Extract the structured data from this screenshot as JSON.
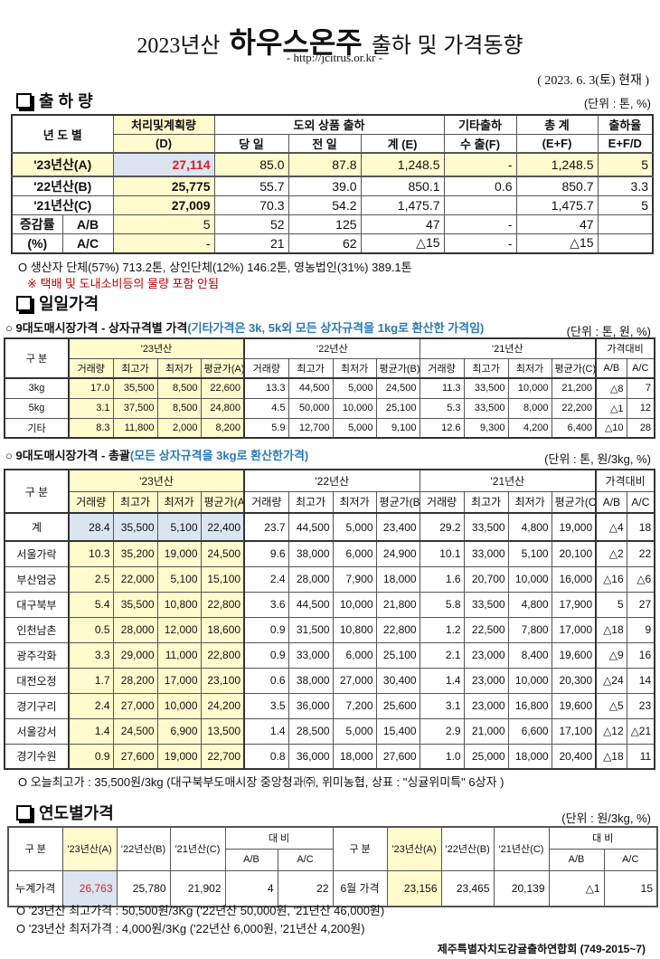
{
  "header": {
    "title_prefix": "2023년산",
    "title_main": "하우스온주",
    "title_suffix": "출하 및 가격동향",
    "url": "- http://jcitrus.or.kr -",
    "date": "( 2023. 6. 3(토) 현재 )"
  },
  "shipment": {
    "section_title": "출 하 량",
    "unit": "(단위 : 톤, %)",
    "headers": {
      "year": "년 도 별",
      "plan": "처리및계획량",
      "plan_code": "(D)",
      "outside": "도외 상품 출하",
      "etc": "기타출하",
      "total": "총  계",
      "rate": "출하율",
      "today": "당 일",
      "prev": "전 일",
      "sum": "계 (E)",
      "export": "수 출(F)",
      "ef": "(E+F)",
      "efd": "E+F/D"
    },
    "rows": [
      {
        "label": "'23년산(A)",
        "values": [
          "27,114",
          "85.0",
          "87.8",
          "1,248.5",
          "-",
          "1,248.5",
          "5"
        ]
      },
      {
        "label": "'22년산(B)",
        "values": [
          "25,775",
          "55.7",
          "39.0",
          "850.1",
          "0.6",
          "850.7",
          "3.3"
        ]
      },
      {
        "label": "'21년산(C)",
        "values": [
          "27,009",
          "70.3",
          "54.2",
          "1,475.7",
          "",
          "1,475.7",
          "5"
        ]
      }
    ],
    "change_label_1": "증감률",
    "change_label_2": "(%)",
    "change_rows": [
      {
        "label": "A/B",
        "values": [
          "5",
          "52",
          "125",
          "47",
          "-",
          "47",
          ""
        ]
      },
      {
        "label": "A/C",
        "values": [
          "-",
          "21",
          "62",
          "△15",
          "-",
          "△15",
          ""
        ]
      }
    ],
    "note": "O 생산자 단체(57%) 713.2톤,  상인단체(12%) 146.2톤, 영농법인(31%) 389.1톤",
    "warning": "※ 택배 및 도내소비등의 물량 포함 안됨"
  },
  "daily": {
    "section_title": "일일가격",
    "spec_title": "○ 9대도매시장가격 - 상자규격별 가격",
    "spec_note": "(기타가격은 3k, 5k외 모든 상자규격을 1kg로 환산한 가격임)",
    "spec_unit": "(단위 : 톤,  원, %)",
    "total_title": "○ 9대도매시장가격 - 총괄",
    "total_note": "(모든 상자규격을 3kg로 환산한가격)",
    "total_unit": "(단위 : 톤, 원/3kg, %)",
    "headers": {
      "category": "구  분",
      "y23": "'23년산",
      "y22": "'22년산",
      "y21": "'21년산",
      "compare": "가격대비",
      "volume": "거래량",
      "max": "최고가",
      "min": "최저가",
      "avgA": "평균가(A)",
      "avgB": "평균가(B)",
      "avgC": "평균가(C)",
      "ab": "A/B",
      "ac": "A/C"
    },
    "spec_rows": [
      {
        "label": "3kg",
        "values": [
          "17.0",
          "35,500",
          "8,500",
          "22,600",
          "13.3",
          "44,500",
          "5,000",
          "24,500",
          "11.3",
          "33,500",
          "10,000",
          "21,200",
          "△8",
          "7"
        ]
      },
      {
        "label": "5kg",
        "values": [
          "3.1",
          "37,500",
          "8,500",
          "24,800",
          "4.5",
          "50,000",
          "10,000",
          "25,100",
          "5.3",
          "33,500",
          "8,000",
          "22,200",
          "△1",
          "12"
        ]
      },
      {
        "label": "기타",
        "values": [
          "8.3",
          "11,800",
          "2,000",
          "8,200",
          "5.9",
          "12,700",
          "5,000",
          "9,100",
          "12.6",
          "9,300",
          "4,200",
          "6,400",
          "△10",
          "28"
        ]
      }
    ],
    "total_row": {
      "label": "계",
      "values": [
        "28.4",
        "35,500",
        "5,100",
        "22,400",
        "23.7",
        "44,500",
        "5,000",
        "23,400",
        "29.2",
        "33,500",
        "4,800",
        "19,000",
        "△4",
        "18"
      ]
    },
    "market_rows": [
      {
        "label": "서울가락",
        "values": [
          "10.3",
          "35,200",
          "19,000",
          "24,500",
          "9.6",
          "38,000",
          "6,000",
          "24,900",
          "10.1",
          "33,000",
          "5,100",
          "20,100",
          "△2",
          "22"
        ]
      },
      {
        "label": "부산엄궁",
        "values": [
          "2.5",
          "22,000",
          "5,100",
          "15,100",
          "2.4",
          "28,000",
          "7,900",
          "18,000",
          "1.6",
          "20,700",
          "10,000",
          "16,000",
          "△16",
          "△6"
        ]
      },
      {
        "label": "대구북부",
        "values": [
          "5.4",
          "35,500",
          "10,800",
          "22,800",
          "3.6",
          "44,500",
          "10,000",
          "21,800",
          "5.8",
          "33,500",
          "4,800",
          "17,900",
          "5",
          "27"
        ]
      },
      {
        "label": "인천남촌",
        "values": [
          "0.5",
          "28,000",
          "12,000",
          "18,600",
          "0.9",
          "31,500",
          "10,800",
          "22,800",
          "1.2",
          "22,500",
          "7,800",
          "17,000",
          "△18",
          "9"
        ]
      },
      {
        "label": "광주각화",
        "values": [
          "3.3",
          "29,000",
          "11,000",
          "22,800",
          "0.9",
          "33,000",
          "6,000",
          "25,100",
          "2.1",
          "23,000",
          "8,400",
          "19,600",
          "△9",
          "16"
        ]
      },
      {
        "label": "대전오정",
        "values": [
          "1.7",
          "28,200",
          "17,000",
          "23,100",
          "0.6",
          "38,000",
          "27,000",
          "30,400",
          "1.4",
          "23,000",
          "10,000",
          "20,300",
          "△24",
          "14"
        ]
      },
      {
        "label": "경기구리",
        "values": [
          "2.4",
          "27,000",
          "10,000",
          "24,200",
          "3.5",
          "36,000",
          "7,200",
          "25,600",
          "3.1",
          "23,000",
          "16,800",
          "19,600",
          "△5",
          "23"
        ]
      },
      {
        "label": "서울강서",
        "values": [
          "1.4",
          "24,500",
          "6,900",
          "13,500",
          "1.4",
          "28,500",
          "5,000",
          "15,400",
          "2.9",
          "21,000",
          "6,600",
          "17,100",
          "△12",
          "△21"
        ]
      },
      {
        "label": "경기수원",
        "values": [
          "0.9",
          "27,600",
          "19,000",
          "22,700",
          "0.8",
          "36,000",
          "18,000",
          "27,600",
          "1.0",
          "25,000",
          "18,000",
          "20,400",
          "△18",
          "11"
        ]
      }
    ],
    "note": "O 오늘최고가 : 35,500원/3kg (대구북부도매시장 중앙청과㈜, 위미농협, 상표 : \"싱귤위미특\" 6상자 )"
  },
  "yearly": {
    "section_title": "연도별가격",
    "unit": "(단위 : 원/3kg, %)",
    "headers": {
      "category": "구    분",
      "a": "'23년산(A)",
      "b": "'22년산(B)",
      "c": "'21년산(C)",
      "compare": "대      비",
      "ab": "A/B",
      "ac": "A/C"
    },
    "cumulative": {
      "label": "누계가격",
      "values": [
        "26,763",
        "25,780",
        "21,902",
        "4",
        "22"
      ]
    },
    "monthly": {
      "label": "6월 가격",
      "values": [
        "23,156",
        "23,465",
        "20,139",
        "△1",
        "15"
      ]
    },
    "note1": "O  '23년산 최고가격 : 50,500원/3Kg ('22년산 50,000원, '21년산 46,000원)",
    "note2": "O  '23년산 최저가격 :   4,000원/3Kg ('22년산   6,000원, '21년산  4,200원)"
  },
  "footer": "제주특별자치도감귤출하연합회 (749-2015~7)",
  "colors": {
    "yellow": "#fffbcc",
    "blue_cell": "#dbe4f1",
    "red": "#e02020",
    "note_blue": "#2a7ab8"
  }
}
